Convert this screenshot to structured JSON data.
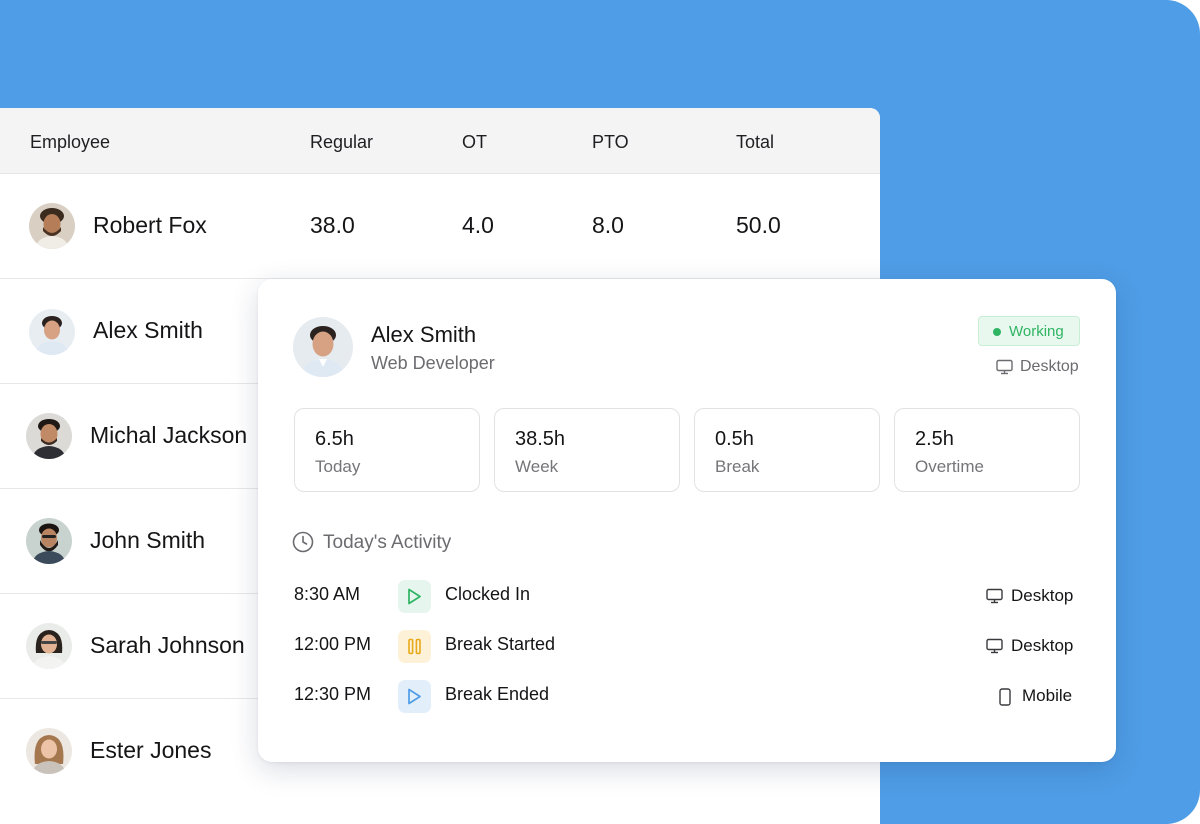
{
  "colors": {
    "background_accent": "#4f9de6",
    "working_green": "#2fb463",
    "clock_in_icon_bg": "#e6f6ee",
    "break_start_icon_bg": "#fdf2d8",
    "break_end_icon_bg": "#e2effb"
  },
  "table": {
    "headers": {
      "employee": "Employee",
      "regular": "Regular",
      "ot": "OT",
      "pto": "PTO",
      "total": "Total"
    },
    "rows": [
      {
        "name": "Robert Fox",
        "regular": "38.0",
        "ot": "4.0",
        "pto": "8.0",
        "total": "50.0"
      },
      {
        "name": "Alex Smith"
      },
      {
        "name": "Michal Jackson"
      },
      {
        "name": "John Smith"
      },
      {
        "name": "Sarah Johnson"
      },
      {
        "name": "Ester Jones"
      }
    ]
  },
  "detail": {
    "name": "Alex Smith",
    "role": "Web Developer",
    "status": "Working",
    "device": "Desktop",
    "stats": [
      {
        "value": "6.5h",
        "label": "Today"
      },
      {
        "value": "38.5h",
        "label": "Week"
      },
      {
        "value": "0.5h",
        "label": "Break"
      },
      {
        "value": "2.5h",
        "label": "Overtime"
      }
    ],
    "activity_title": "Today's Activity",
    "activity": [
      {
        "time": "8:30 AM",
        "icon": "play-icon",
        "label": "Clocked In",
        "device": "Desktop",
        "device_icon": "desktop-icon"
      },
      {
        "time": "12:00 PM",
        "icon": "pause-icon",
        "label": "Break Started",
        "device": "Desktop",
        "device_icon": "desktop-icon"
      },
      {
        "time": "12:30 PM",
        "icon": "play-icon",
        "label": "Break Ended",
        "device": "Mobile",
        "device_icon": "mobile-icon"
      }
    ]
  }
}
